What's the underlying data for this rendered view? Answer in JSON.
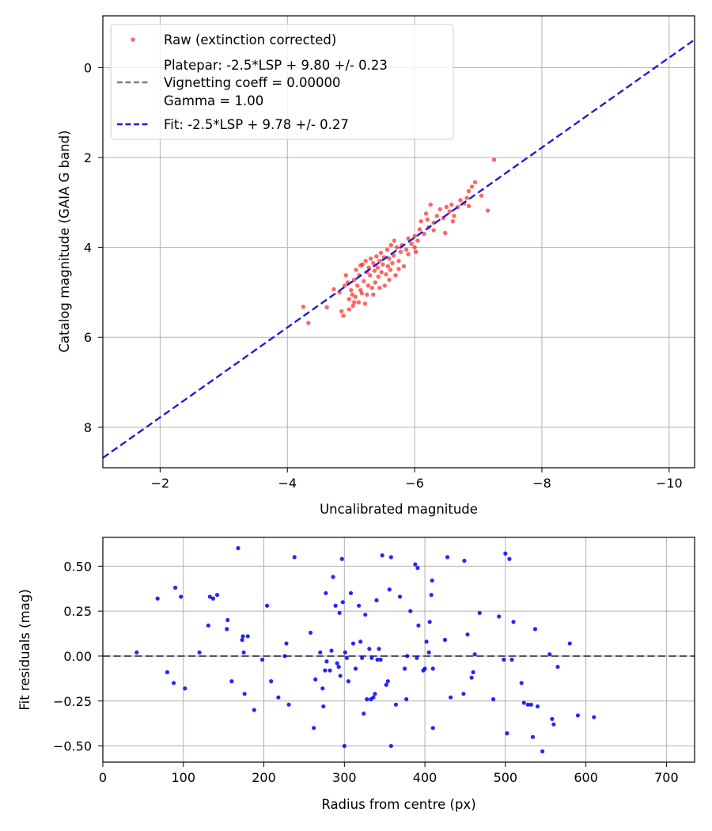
{
  "chart_data": [
    {
      "type": "scatter",
      "xlabel": "Uncalibrated magnitude",
      "ylabel": "Catalog magnitude (GAIA G band)",
      "xlim": [
        -1.1,
        -10.4
      ],
      "ylim": [
        8.9,
        -1.15
      ],
      "xticks": [
        -2,
        -4,
        -6,
        -8,
        -10
      ],
      "xtick_labels": [
        "−2",
        "−4",
        "−6",
        "−8",
        "−10"
      ],
      "yticks": [
        0,
        2,
        4,
        6,
        8
      ],
      "ytick_labels": [
        "0",
        "2",
        "4",
        "6",
        "8"
      ],
      "grid": true,
      "legend_position": "top-left",
      "legend": [
        {
          "label": "Raw (extinction corrected)",
          "style": "scatter",
          "color": "#ff0000"
        },
        {
          "label": "Platepar: -2.5*LSP + 9.80 +/- 0.23",
          "style": "none"
        },
        {
          "label": "Vignetting coeff = 0.00000",
          "style": "dashed",
          "color": "#808080"
        },
        {
          "label": "Gamma = 1.00",
          "style": "none"
        },
        {
          "label": "Fit: -2.5*LSP + 9.78 +/- 0.27",
          "style": "dashed",
          "color": "#2020d0"
        }
      ],
      "fit_line": {
        "slope": 1.0,
        "intercept": 9.78,
        "x": [
          -1.1,
          -10.4
        ],
        "color": "#2020d0"
      },
      "series": [
        {
          "name": "Raw (extinction corrected)",
          "color": "#ff0000",
          "points": [
            [
              -4.25,
              5.32
            ],
            [
              -4.33,
              5.68
            ],
            [
              -4.62,
              5.33
            ],
            [
              -4.73,
              4.93
            ],
            [
              -4.82,
              5.0
            ],
            [
              -4.85,
              5.42
            ],
            [
              -4.88,
              5.52
            ],
            [
              -4.9,
              4.85
            ],
            [
              -4.92,
              4.62
            ],
            [
              -4.95,
              4.78
            ],
            [
              -4.97,
              5.15
            ],
            [
              -5.0,
              4.95
            ],
            [
              -5.02,
              5.05
            ],
            [
              -5.03,
              5.3
            ],
            [
              -5.05,
              4.72
            ],
            [
              -5.07,
              5.1
            ],
            [
              -5.08,
              4.5
            ],
            [
              -5.1,
              4.85
            ],
            [
              -5.12,
              5.22
            ],
            [
              -5.13,
              4.62
            ],
            [
              -5.15,
              4.95
            ],
            [
              -5.17,
              5.02
            ],
            [
              -5.18,
              4.38
            ],
            [
              -5.2,
              4.75
            ],
            [
              -5.22,
              5.25
            ],
            [
              -5.23,
              4.3
            ],
            [
              -5.25,
              4.55
            ],
            [
              -5.27,
              4.85
            ],
            [
              -5.28,
              4.45
            ],
            [
              -5.3,
              4.62
            ],
            [
              -5.31,
              4.25
            ],
            [
              -5.33,
              4.9
            ],
            [
              -5.35,
              4.35
            ],
            [
              -5.37,
              4.52
            ],
            [
              -5.38,
              4.78
            ],
            [
              -5.4,
              4.2
            ],
            [
              -5.42,
              4.45
            ],
            [
              -5.43,
              4.65
            ],
            [
              -5.45,
              4.3
            ],
            [
              -5.47,
              4.12
            ],
            [
              -5.48,
              4.55
            ],
            [
              -5.5,
              4.38
            ],
            [
              -5.52,
              4.22
            ],
            [
              -5.53,
              4.85
            ],
            [
              -5.55,
              4.6
            ],
            [
              -5.57,
              4.05
            ],
            [
              -5.58,
              4.42
            ],
            [
              -5.6,
              4.25
            ],
            [
              -5.62,
              4.5
            ],
            [
              -5.63,
              3.95
            ],
            [
              -5.65,
              4.35
            ],
            [
              -5.67,
              4.18
            ],
            [
              -5.68,
              3.85
            ],
            [
              -5.7,
              4.62
            ],
            [
              -5.72,
              4.0
            ],
            [
              -5.75,
              4.3
            ],
            [
              -5.78,
              4.1
            ],
            [
              -5.8,
              3.95
            ],
            [
              -5.83,
              4.42
            ],
            [
              -5.87,
              4.05
            ],
            [
              -5.9,
              3.8
            ],
            [
              -5.95,
              3.92
            ],
            [
              -6.0,
              3.75
            ],
            [
              -6.02,
              4.1
            ],
            [
              -6.05,
              3.85
            ],
            [
              -6.08,
              3.6
            ],
            [
              -6.1,
              3.42
            ],
            [
              -6.15,
              3.7
            ],
            [
              -6.18,
              3.25
            ],
            [
              -6.22,
              3.55
            ],
            [
              -6.25,
              3.05
            ],
            [
              -6.3,
              3.45
            ],
            [
              -6.35,
              3.3
            ],
            [
              -6.4,
              3.15
            ],
            [
              -6.45,
              3.35
            ],
            [
              -6.48,
              3.68
            ],
            [
              -6.5,
              3.1
            ],
            [
              -6.55,
              3.2
            ],
            [
              -6.58,
              3.05
            ],
            [
              -6.62,
              3.3
            ],
            [
              -6.68,
              3.1
            ],
            [
              -6.72,
              2.95
            ],
            [
              -6.78,
              3.02
            ],
            [
              -6.82,
              2.9
            ],
            [
              -6.85,
              2.75
            ],
            [
              -6.9,
              2.65
            ],
            [
              -6.95,
              2.55
            ],
            [
              -7.05,
              2.85
            ],
            [
              -7.15,
              3.18
            ],
            [
              -7.25,
              2.05
            ],
            [
              -5.35,
              5.05
            ],
            [
              -5.45,
              4.9
            ],
            [
              -5.15,
              4.4
            ],
            [
              -5.9,
              4.15
            ],
            [
              -6.2,
              3.38
            ],
            [
              -4.97,
              5.38
            ],
            [
              -5.05,
              5.22
            ],
            [
              -5.25,
              5.05
            ],
            [
              -5.6,
              4.72
            ],
            [
              -5.75,
              4.48
            ],
            [
              -6.0,
              4.0
            ],
            [
              -6.3,
              3.62
            ],
            [
              -6.6,
              3.42
            ],
            [
              -6.85,
              3.08
            ]
          ]
        }
      ]
    },
    {
      "type": "scatter",
      "xlabel": "Radius from centre (px)",
      "ylabel": "Fit residuals (mag)",
      "xlim": [
        0,
        735
      ],
      "ylim": [
        -0.59,
        0.66
      ],
      "xticks": [
        0,
        100,
        200,
        300,
        400,
        500,
        600,
        700
      ],
      "xtick_labels": [
        "0",
        "100",
        "200",
        "300",
        "400",
        "500",
        "600",
        "700"
      ],
      "yticks": [
        0.5,
        0.25,
        0.0,
        -0.25,
        -0.5
      ],
      "ytick_labels": [
        "0.50",
        "0.25",
        "0.00",
        "−0.25",
        "−0.50"
      ],
      "grid": true,
      "reference_line": {
        "y": 0.0,
        "style": "dashed",
        "color": "#555555"
      },
      "series": [
        {
          "name": "residuals",
          "color": "#0000ff",
          "points": [
            [
              42,
              0.02
            ],
            [
              68,
              0.32
            ],
            [
              80,
              -0.09
            ],
            [
              88,
              -0.15
            ],
            [
              90,
              0.38
            ],
            [
              97,
              0.33
            ],
            [
              102,
              -0.18
            ],
            [
              120,
              0.02
            ],
            [
              131,
              0.17
            ],
            [
              133,
              0.33
            ],
            [
              137,
              0.32
            ],
            [
              142,
              0.34
            ],
            [
              154,
              0.15
            ],
            [
              155,
              0.2
            ],
            [
              160,
              -0.14
            ],
            [
              168,
              0.6
            ],
            [
              173,
              0.09
            ],
            [
              174,
              0.11
            ],
            [
              175,
              0.02
            ],
            [
              176,
              -0.21
            ],
            [
              180,
              0.11
            ],
            [
              188,
              -0.3
            ],
            [
              198,
              -0.02
            ],
            [
              204,
              0.28
            ],
            [
              209,
              -0.14
            ],
            [
              218,
              -0.23
            ],
            [
              226,
              0.0
            ],
            [
              228,
              0.07
            ],
            [
              231,
              -0.27
            ],
            [
              238,
              0.55
            ],
            [
              258,
              0.13
            ],
            [
              262,
              -0.4
            ],
            [
              264,
              -0.13
            ],
            [
              270,
              0.02
            ],
            [
              273,
              -0.18
            ],
            [
              274,
              -0.28
            ],
            [
              276,
              -0.08
            ],
            [
              277,
              0.35
            ],
            [
              278,
              -0.03
            ],
            [
              282,
              -0.08
            ],
            [
              284,
              0.03
            ],
            [
              286,
              0.44
            ],
            [
              289,
              0.28
            ],
            [
              291,
              -0.04
            ],
            [
              293,
              -0.06
            ],
            [
              294,
              0.24
            ],
            [
              295,
              -0.11
            ],
            [
              297,
              0.54
            ],
            [
              298,
              0.3
            ],
            [
              300,
              -0.5
            ],
            [
              301,
              0.02
            ],
            [
              303,
              -0.01
            ],
            [
              305,
              -0.14
            ],
            [
              308,
              0.35
            ],
            [
              311,
              0.07
            ],
            [
              314,
              -0.07
            ],
            [
              318,
              0.28
            ],
            [
              320,
              0.08
            ],
            [
              322,
              -0.01
            ],
            [
              324,
              -0.32
            ],
            [
              326,
              0.23
            ],
            [
              328,
              -0.24
            ],
            [
              331,
              0.04
            ],
            [
              333,
              -0.24
            ],
            [
              334,
              -0.01
            ],
            [
              336,
              -0.23
            ],
            [
              338,
              -0.21
            ],
            [
              340,
              0.31
            ],
            [
              341,
              -0.02
            ],
            [
              343,
              0.04
            ],
            [
              345,
              -0.02
            ],
            [
              347,
              0.56
            ],
            [
              352,
              -0.16
            ],
            [
              354,
              -0.14
            ],
            [
              356,
              0.37
            ],
            [
              358,
              -0.5
            ],
            [
              358,
              0.55
            ],
            [
              364,
              -0.27
            ],
            [
              369,
              0.33
            ],
            [
              375,
              -0.07
            ],
            [
              377,
              -0.24
            ],
            [
              378,
              0.0
            ],
            [
              382,
              0.25
            ],
            [
              388,
              0.51
            ],
            [
              390,
              -0.01
            ],
            [
              391,
              0.49
            ],
            [
              392,
              0.17
            ],
            [
              398,
              -0.08
            ],
            [
              400,
              -0.07
            ],
            [
              402,
              0.08
            ],
            [
              405,
              0.02
            ],
            [
              406,
              0.19
            ],
            [
              408,
              0.34
            ],
            [
              409,
              0.42
            ],
            [
              410,
              -0.07
            ],
            [
              410,
              -0.4
            ],
            [
              425,
              0.09
            ],
            [
              428,
              0.55
            ],
            [
              432,
              -0.23
            ],
            [
              448,
              -0.21
            ],
            [
              449,
              0.53
            ],
            [
              453,
              0.12
            ],
            [
              458,
              -0.12
            ],
            [
              460,
              -0.09
            ],
            [
              462,
              0.01
            ],
            [
              468,
              0.24
            ],
            [
              485,
              -0.24
            ],
            [
              492,
              0.22
            ],
            [
              498,
              -0.02
            ],
            [
              500,
              0.57
            ],
            [
              502,
              -0.43
            ],
            [
              505,
              0.54
            ],
            [
              508,
              -0.02
            ],
            [
              510,
              0.19
            ],
            [
              520,
              -0.15
            ],
            [
              523,
              -0.26
            ],
            [
              528,
              -0.27
            ],
            [
              532,
              -0.27
            ],
            [
              534,
              -0.45
            ],
            [
              537,
              0.15
            ],
            [
              540,
              -0.28
            ],
            [
              546,
              -0.53
            ],
            [
              555,
              0.01
            ],
            [
              558,
              -0.35
            ],
            [
              560,
              -0.38
            ],
            [
              565,
              -0.06
            ],
            [
              580,
              0.07
            ],
            [
              590,
              -0.33
            ],
            [
              610,
              -0.34
            ]
          ]
        }
      ]
    }
  ]
}
